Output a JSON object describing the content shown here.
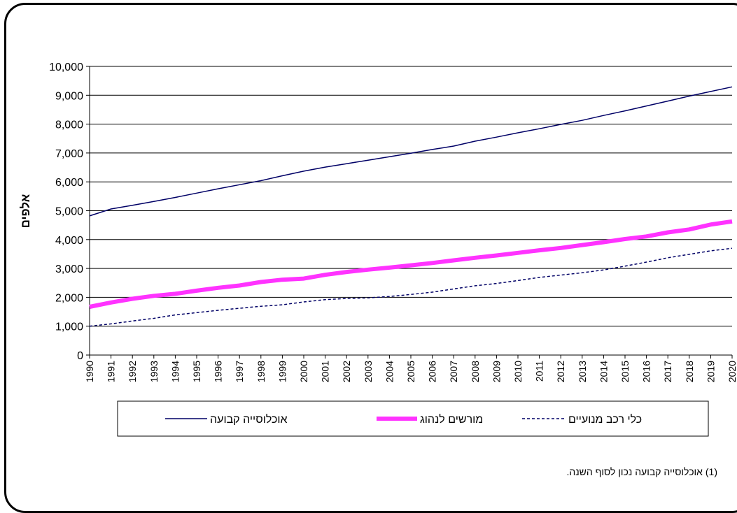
{
  "chart_data": {
    "type": "line",
    "ylabel": "אלפים",
    "xlabel": "",
    "ylim": [
      0,
      10000
    ],
    "yticks": [
      0,
      1000,
      2000,
      3000,
      4000,
      5000,
      6000,
      7000,
      8000,
      9000,
      10000
    ],
    "ytick_labels": [
      "0",
      "1,000",
      "2,000",
      "3,000",
      "4,000",
      "5,000",
      "6,000",
      "7,000",
      "8,000",
      "9,000",
      "10,000"
    ],
    "grid": true,
    "legend_position": "bottom",
    "categories": [
      "1990",
      "1991",
      "1992",
      "1993",
      "1994",
      "1995",
      "1996",
      "1997",
      "1998",
      "1999",
      "2000",
      "2001",
      "2002",
      "2003",
      "2004",
      "2005",
      "2006",
      "2007",
      "2008",
      "2009",
      "2010",
      "2011",
      "2012",
      "2013",
      "2014",
      "2015",
      "2016",
      "2017",
      "2018",
      "2019",
      "2020"
    ],
    "series": [
      {
        "name": "אוכלוסייה קבועה",
        "color": "#000066",
        "style": "solid-thin",
        "values": [
          4820,
          5060,
          5190,
          5320,
          5460,
          5610,
          5760,
          5900,
          6040,
          6210,
          6370,
          6510,
          6630,
          6750,
          6870,
          6990,
          7120,
          7240,
          7410,
          7550,
          7700,
          7840,
          7990,
          8130,
          8300,
          8460,
          8630,
          8800,
          8970,
          9130,
          9290
        ]
      },
      {
        "name": "מורשים לנהוג",
        "color": "#ff33ff",
        "style": "solid-thick",
        "values": [
          1670,
          1820,
          1950,
          2050,
          2120,
          2230,
          2330,
          2410,
          2530,
          2610,
          2650,
          2780,
          2880,
          2960,
          3030,
          3110,
          3190,
          3280,
          3370,
          3450,
          3540,
          3630,
          3710,
          3810,
          3910,
          4020,
          4110,
          4250,
          4350,
          4520,
          4630
        ]
      },
      {
        "name": "כלי רכב מנועיים",
        "color": "#000066",
        "style": "dashed",
        "values": [
          1000,
          1080,
          1180,
          1270,
          1390,
          1470,
          1550,
          1620,
          1690,
          1740,
          1840,
          1920,
          1960,
          1980,
          2030,
          2100,
          2180,
          2290,
          2400,
          2480,
          2580,
          2690,
          2770,
          2850,
          2950,
          3080,
          3220,
          3370,
          3490,
          3610,
          3700
        ]
      }
    ],
    "footnote": "(1) אוכלוסייה קבועה נכון לסוף השנה."
  }
}
